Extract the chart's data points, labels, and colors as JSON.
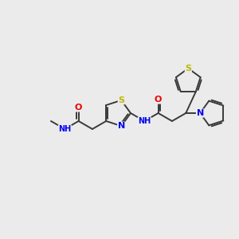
{
  "background_color": "#ebebeb",
  "bond_color": "#3a3a3a",
  "atom_colors": {
    "N": "#0000ee",
    "O": "#ee0000",
    "S": "#bbbb00",
    "C": "#3a3a3a"
  },
  "figsize": [
    3.0,
    3.0
  ],
  "dpi": 100,
  "lw": 1.4,
  "fs": 8.0,
  "fs_small": 7.0
}
